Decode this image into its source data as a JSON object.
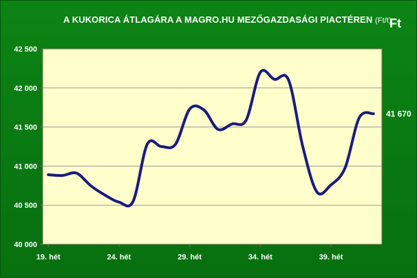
{
  "title": "A KUKORICA ÁTLAGÁRA A MAGRO.HU MEZŐGAZDASÁGI PIACTÉREN",
  "title_unit": "(Ft/t)",
  "unit_label": "Ft",
  "colors": {
    "background": "#0a7a12",
    "plot_area": "#ffffcc",
    "line": "#1a1a80",
    "gridline": "#9a9a9a",
    "text": "#ffffff"
  },
  "chart_data": {
    "type": "line",
    "title": "A KUKORICA ÁTLAGÁRA A MAGRO.HU MEZŐGAZDASÁGI PIACTÉREN (Ft/t)",
    "ylabel": "Ft",
    "xlabel": "",
    "ylim": [
      40000,
      42500
    ],
    "y_ticks": [
      40000,
      40500,
      41000,
      41500,
      42000,
      42500
    ],
    "y_tick_labels": [
      "40 000",
      "40 500",
      "41 000",
      "41 500",
      "42 000",
      "42 500"
    ],
    "x_ticks": [
      19,
      24,
      29,
      34,
      39
    ],
    "x_tick_labels": [
      "19. hét",
      "24. hét",
      "29. hét",
      "34. hét",
      "39. hét"
    ],
    "grid": true,
    "legend": "none",
    "last_value_label": "41 670",
    "series": [
      {
        "x": [
          19,
          20,
          21,
          22,
          23,
          24,
          25,
          26,
          27,
          28,
          29,
          30,
          31,
          32,
          33,
          34,
          35,
          36,
          37,
          38,
          39,
          40,
          41,
          42
        ],
        "values": [
          40890,
          40880,
          40910,
          40750,
          40630,
          40540,
          40550,
          41280,
          41250,
          41280,
          41730,
          41720,
          41470,
          41540,
          41590,
          42200,
          42110,
          42100,
          41250,
          40670,
          40760,
          40980,
          41620,
          41670
        ]
      }
    ]
  }
}
